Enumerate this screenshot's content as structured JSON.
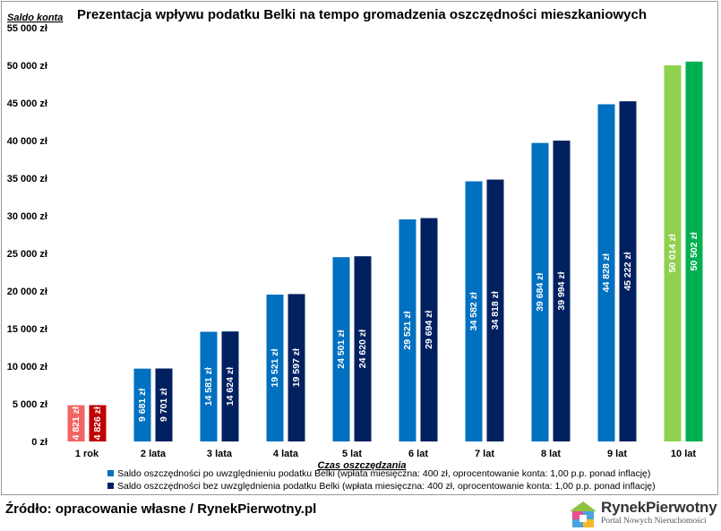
{
  "chart_data": {
    "type": "bar",
    "title": "Prezentacja wpływu podatku Belki na tempo gromadzenia oszczędności mieszkaniowych",
    "ylabel": "Saldo konta",
    "xlabel": "Czas oszczędzania",
    "ylim": [
      0,
      55000
    ],
    "yticks": [
      "0 zł",
      "5 000 zł",
      "10 000 zł",
      "15 000 zł",
      "20 000 zł",
      "25 000 zł",
      "30 000 zł",
      "35 000 zł",
      "40 000 zł",
      "45 000 zł",
      "50 000 zł",
      "55 000 zł"
    ],
    "ytick_values": [
      0,
      5000,
      10000,
      15000,
      20000,
      25000,
      30000,
      35000,
      40000,
      45000,
      50000,
      55000
    ],
    "categories": [
      "1 rok",
      "2 lata",
      "3 lata",
      "4 lata",
      "5 lat",
      "6 lat",
      "7 lat",
      "8 lat",
      "9 lat",
      "10 lat"
    ],
    "series": [
      {
        "name": "Saldo oszczędności po uwzględnieniu podatku Belki (wpłata miesięczna: 400 zł, oprocentowanie konta: 1,00 p.p. ponad inflację)",
        "values": [
          4821,
          9681,
          14581,
          19521,
          24501,
          29521,
          34582,
          39684,
          44828,
          50014
        ],
        "labels": [
          "4 821 zł",
          "9 681 zł",
          "14 581 zł",
          "19 521 zł",
          "24 501 zł",
          "29 521 zł",
          "34 582 zł",
          "39 684 zł",
          "44 828 zł",
          "50 014 zł"
        ],
        "color": "#0070c0",
        "first_color": "#f26464",
        "last_color": "#8fd14f"
      },
      {
        "name": "Saldo oszczędności bez uwzględnienia podatku Belki (wpłata miesięczna: 400 zł, oprocentowanie konta: 1,00 p.p. ponad inflację)",
        "values": [
          4826,
          9701,
          14624,
          19597,
          24620,
          29694,
          34818,
          39994,
          45222,
          50502
        ],
        "labels": [
          "4 826 zł",
          "9 701 zł",
          "14 624 zł",
          "19 597 zł",
          "24 620 zł",
          "29 694 zł",
          "34 818 zł",
          "39 994 zł",
          "45 222 zł",
          "50 502 zł"
        ],
        "color": "#002060",
        "first_color": "#c00000",
        "last_color": "#00b050"
      }
    ],
    "legend_position": "bottom",
    "grid": false
  },
  "footer": {
    "source": "Źródło: opracowanie własne / RynekPierwotny.pl"
  },
  "logo": {
    "name": "RynekPierwotny",
    "tagline": "Portal Nowych Nieruchomości"
  }
}
